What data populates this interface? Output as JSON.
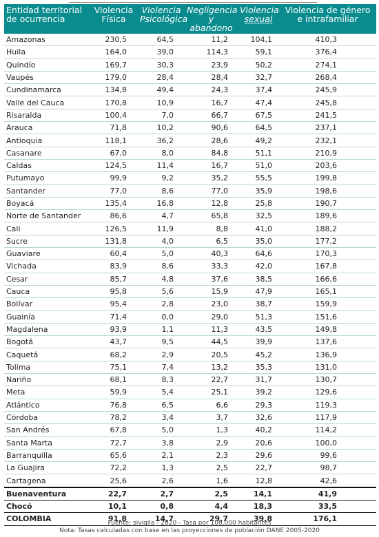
{
  "table": {
    "headers": {
      "entity": [
        "Entidad territorial",
        "de ocurrencia"
      ],
      "fisica": [
        "Violencia",
        "Física"
      ],
      "psicologica": [
        "Violencia",
        "Psicológica"
      ],
      "negligencia": [
        "Negligencia",
        "y abandono"
      ],
      "sexual": [
        "Violencia",
        "sexual"
      ],
      "genero": [
        "Violencia de género",
        "e intrafamiliar"
      ]
    },
    "rows": [
      {
        "name": "Amazonas",
        "fisica": "230,5",
        "psicologica": "64,5",
        "negligencia": "11,2",
        "sexual": "104,1",
        "genero": "410,3"
      },
      {
        "name": "Huila",
        "fisica": "164,0",
        "psicologica": "39,0",
        "negligencia": "114,3",
        "sexual": "59,1",
        "genero": "376,4"
      },
      {
        "name": "Quindío",
        "fisica": "169,7",
        "psicologica": "30,3",
        "negligencia": "23,9",
        "sexual": "50,2",
        "genero": "274,1"
      },
      {
        "name": "Vaupés",
        "fisica": "179,0",
        "psicologica": "28,4",
        "negligencia": "28,4",
        "sexual": "32,7",
        "genero": "268,4"
      },
      {
        "name": "Cundinamarca",
        "fisica": "134,8",
        "psicologica": "49,4",
        "negligencia": "24,3",
        "sexual": "37,4",
        "genero": "245,9"
      },
      {
        "name": "Valle del Cauca",
        "fisica": "170,8",
        "psicologica": "10,9",
        "negligencia": "16,7",
        "sexual": "47,4",
        "genero": "245,8"
      },
      {
        "name": "Risaralda",
        "fisica": "100,4",
        "psicologica": "7,0",
        "negligencia": "66,7",
        "sexual": "67,5",
        "genero": "241,5"
      },
      {
        "name": "Arauca",
        "fisica": "71,8",
        "psicologica": "10,2",
        "negligencia": "90,6",
        "sexual": "64,5",
        "genero": "237,1"
      },
      {
        "name": "Antioquia",
        "fisica": "118,1",
        "psicologica": "36,2",
        "negligencia": "28,6",
        "sexual": "49,2",
        "genero": "232,1"
      },
      {
        "name": "Casanare",
        "fisica": "67,0",
        "psicologica": "8,0",
        "negligencia": "84,8",
        "sexual": "51,1",
        "genero": "210,9"
      },
      {
        "name": "Caldas",
        "fisica": "124,5",
        "psicologica": "11,4",
        "negligencia": "16,7",
        "sexual": "51,0",
        "genero": "203,6"
      },
      {
        "name": "Putumayo",
        "fisica": "99,9",
        "psicologica": "9,2",
        "negligencia": "35,2",
        "sexual": "55,5",
        "genero": "199,8"
      },
      {
        "name": "Santander",
        "fisica": "77,0",
        "psicologica": "8,6",
        "negligencia": "77,0",
        "sexual": "35,9",
        "genero": "198,6"
      },
      {
        "name": "Boyacá",
        "fisica": "135,4",
        "psicologica": "16,8",
        "negligencia": "12,8",
        "sexual": "25,8",
        "genero": "190,7"
      },
      {
        "name": "Norte de Santander",
        "fisica": "86,6",
        "psicologica": "4,7",
        "negligencia": "65,8",
        "sexual": "32,5",
        "genero": "189,6"
      },
      {
        "name": "Cali",
        "fisica": "126,5",
        "psicologica": "11,9",
        "negligencia": "8,8",
        "sexual": "41,0",
        "genero": "188,2"
      },
      {
        "name": "Sucre",
        "fisica": "131,8",
        "psicologica": "4,0",
        "negligencia": "6,5",
        "sexual": "35,0",
        "genero": "177,2"
      },
      {
        "name": "Guaviare",
        "fisica": "60,4",
        "psicologica": "5,0",
        "negligencia": "40,3",
        "sexual": "64,6",
        "genero": "170,3"
      },
      {
        "name": "Vichada",
        "fisica": "83,9",
        "psicologica": "8,6",
        "negligencia": "33,3",
        "sexual": "42,0",
        "genero": "167,8"
      },
      {
        "name": "Cesar",
        "fisica": "85,7",
        "psicologica": "4,8",
        "negligencia": "37,6",
        "sexual": "38,5",
        "genero": "166,6"
      },
      {
        "name": "Cauca",
        "fisica": "95,8",
        "psicologica": "5,6",
        "negligencia": "15,9",
        "sexual": "47,9",
        "genero": "165,1"
      },
      {
        "name": "Bolívar",
        "fisica": "95,4",
        "psicologica": "2,8",
        "negligencia": "23,0",
        "sexual": "38,7",
        "genero": "159,9"
      },
      {
        "name": "Guainía",
        "fisica": "71,4",
        "psicologica": "0,0",
        "negligencia": "29,0",
        "sexual": "51,3",
        "genero": "151,6"
      },
      {
        "name": "Magdalena",
        "fisica": "93,9",
        "psicologica": "1,1",
        "negligencia": "11,3",
        "sexual": "43,5",
        "genero": "149,8"
      },
      {
        "name": "Bogotá",
        "fisica": "43,7",
        "psicologica": "9,5",
        "negligencia": "44,5",
        "sexual": "39,9",
        "genero": "137,6"
      },
      {
        "name": "Caquetá",
        "fisica": "68,2",
        "psicologica": "2,9",
        "negligencia": "20,5",
        "sexual": "45,2",
        "genero": "136,9"
      },
      {
        "name": "Tolima",
        "fisica": "75,1",
        "psicologica": "7,4",
        "negligencia": "13,2",
        "sexual": "35,3",
        "genero": "131,0"
      },
      {
        "name": "Nariño",
        "fisica": "68,1",
        "psicologica": "8,3",
        "negligencia": "22,7",
        "sexual": "31,7",
        "genero": "130,7"
      },
      {
        "name": "Meta",
        "fisica": "59,9",
        "psicologica": "5,4",
        "negligencia": "25,1",
        "sexual": "39,2",
        "genero": "129,6"
      },
      {
        "name": "Atlántico",
        "fisica": "76,8",
        "psicologica": "6,5",
        "negligencia": "6,6",
        "sexual": "29,3",
        "genero": "119,3"
      },
      {
        "name": "Córdoba",
        "fisica": "78,2",
        "psicologica": "3,4",
        "negligencia": "3,7",
        "sexual": "32,6",
        "genero": "117,9"
      },
      {
        "name": "San Andrés",
        "fisica": "67,8",
        "psicologica": "5,0",
        "negligencia": "1,3",
        "sexual": "40,2",
        "genero": "114,2"
      },
      {
        "name": "Santa Marta",
        "fisica": "72,7",
        "psicologica": "3,8",
        "negligencia": "2,9",
        "sexual": "20,6",
        "genero": "100,0"
      },
      {
        "name": "Barranquilla",
        "fisica": "65,6",
        "psicologica": "2,1",
        "negligencia": "2,3",
        "sexual": "29,6",
        "genero": "99,6"
      },
      {
        "name": "La Guajira",
        "fisica": "72,2",
        "psicologica": "1,3",
        "negligencia": "2,5",
        "sexual": "22,7",
        "genero": "98,7"
      },
      {
        "name": "Cartagena",
        "fisica": "25,6",
        "psicologica": "2,6",
        "negligencia": "1,6",
        "sexual": "12,8",
        "genero": "42,6"
      }
    ],
    "summary_rows": [
      {
        "name": "Buenaventura",
        "fisica": "22,7",
        "psicologica": "2,7",
        "negligencia": "2,5",
        "sexual": "14,1",
        "genero": "41,9"
      },
      {
        "name": "Chocó",
        "fisica": "10,1",
        "psicologica": "0,8",
        "negligencia": "4,4",
        "sexual": "18,3",
        "genero": "33,5"
      },
      {
        "name": "COLOMBIA",
        "fisica": "91,8",
        "psicologica": "14,7",
        "negligencia": "29,7",
        "sexual": "39,8",
        "genero": "176,1"
      }
    ]
  },
  "notes": {
    "source": "Fuente: sivigila - 2020 - Tasa por 100.000 habitantes",
    "note": "Nota: Tasas calculadas con base en las proyecciones de población DANE 2005-2020"
  },
  "colors": {
    "header_bg": "#0a8c8f",
    "row_rule": "#b7d7d8"
  }
}
